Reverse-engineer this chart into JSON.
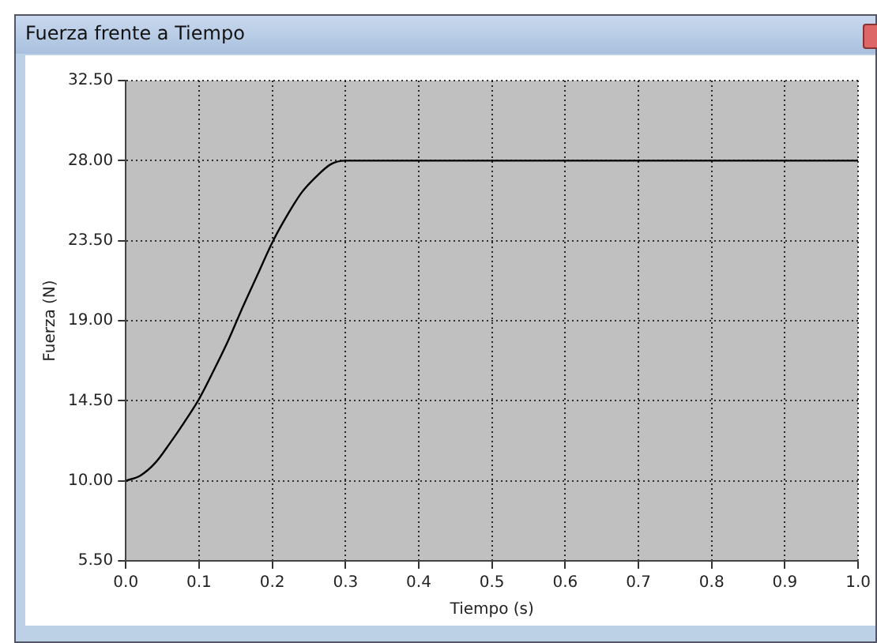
{
  "chart_data": {
    "type": "line",
    "title": "Fuerza frente a Tiempo",
    "xlabel": "Tiempo (s)",
    "ylabel": "Fuerza (N)",
    "x": [
      0,
      0.02,
      0.04,
      0.06,
      0.08,
      0.1,
      0.12,
      0.14,
      0.16,
      0.18,
      0.2,
      0.22,
      0.24,
      0.26,
      0.28,
      0.3,
      0.5,
      0.75,
      1.0
    ],
    "series": [
      {
        "color": "#000000",
        "values": [
          10,
          10.3,
          11,
          12.1,
          13.3,
          14.6,
          16.2,
          17.9,
          19.8,
          21.6,
          23.4,
          24.9,
          26.2,
          27.1,
          27.8,
          28,
          28,
          28,
          28
        ]
      }
    ],
    "xlim": [
      0,
      1.0
    ],
    "ylim": [
      5.5,
      32.5
    ],
    "xticks": [
      {
        "value": 0,
        "label": "0.0"
      },
      0.1,
      0.2,
      0.3,
      0.4,
      0.5,
      0.6,
      0.7,
      0.8,
      0.9,
      {
        "value": 1.0,
        "label": "1.0"
      }
    ],
    "yticks": [
      {
        "value": 5.5,
        "label": "5.50"
      },
      {
        "value": 10,
        "label": "10.00"
      },
      {
        "value": 14.5,
        "label": "14.50"
      },
      {
        "value": 19,
        "label": "19.00"
      },
      {
        "value": 23.5,
        "label": "23.50"
      },
      {
        "value": 28,
        "label": "28.00"
      },
      {
        "value": 32.5,
        "label": "32.50"
      }
    ],
    "grid": true,
    "legend": false,
    "marker": "none",
    "line_style": "solid"
  }
}
